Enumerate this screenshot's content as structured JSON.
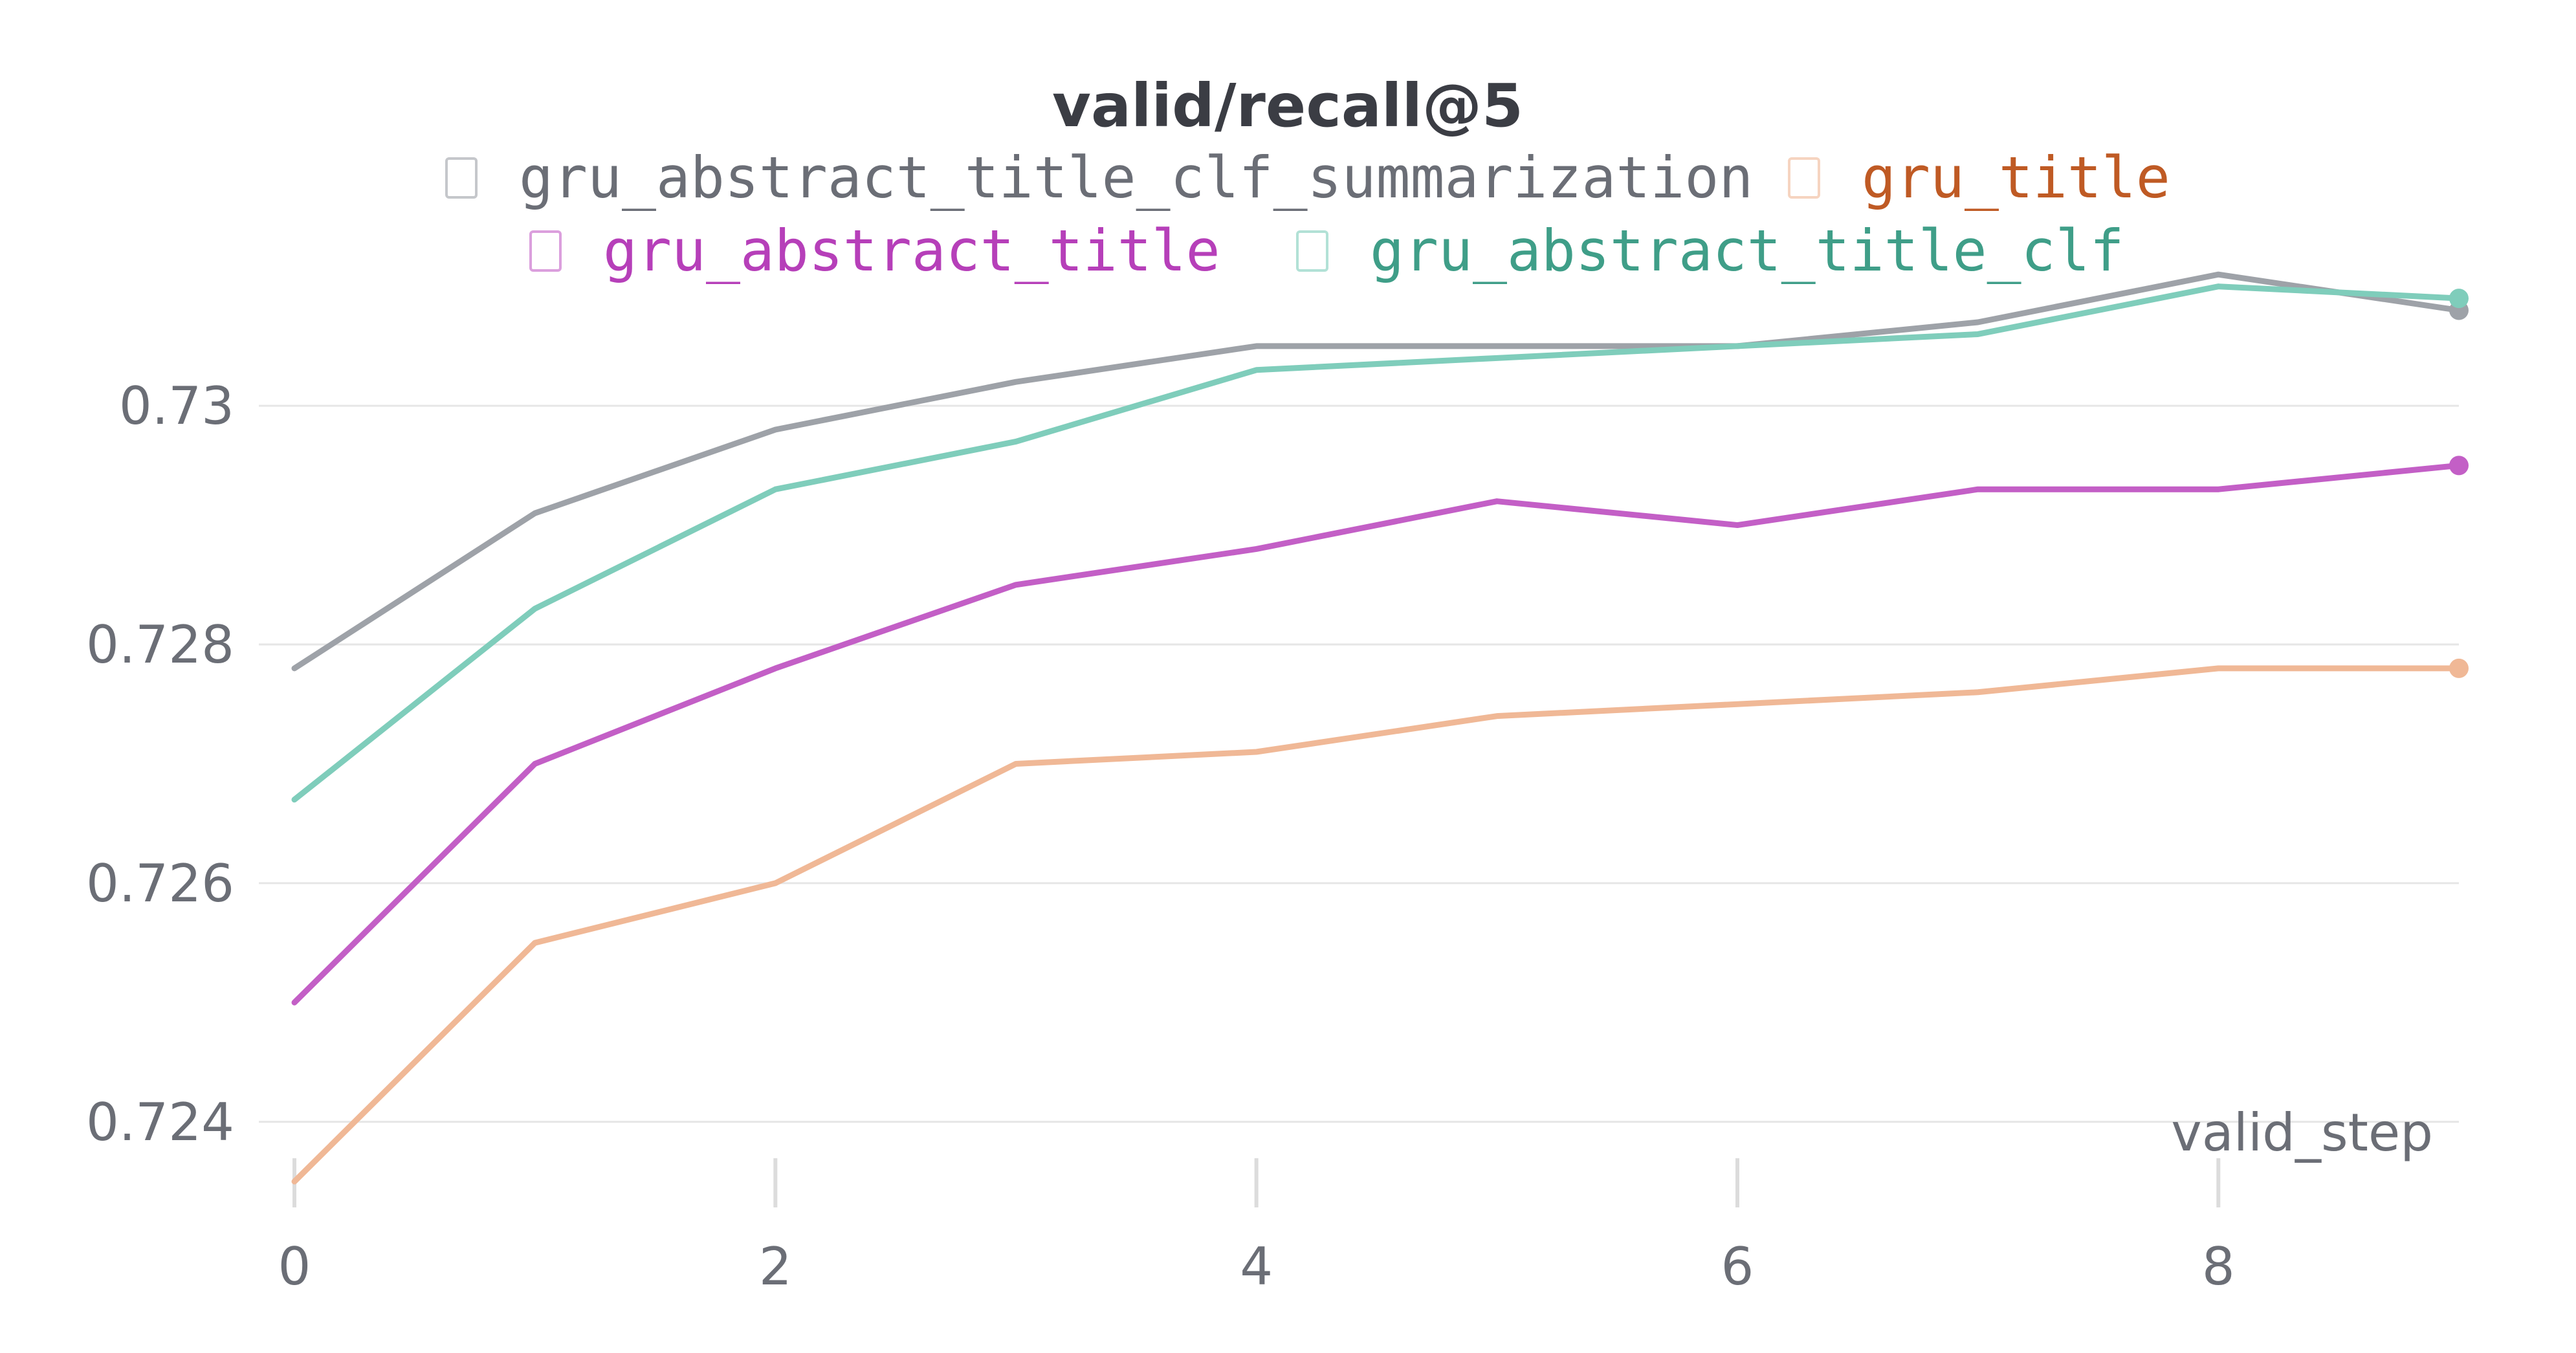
{
  "chart_data": {
    "type": "line",
    "title": "valid/recall@5",
    "xlabel": "valid_step",
    "ylabel": "",
    "x": [
      0,
      1,
      2,
      3,
      4,
      5,
      6,
      7,
      8,
      9
    ],
    "xlim": [
      0,
      9
    ],
    "ylim": [
      0.7235,
      0.7316
    ],
    "x_ticks": [
      "0",
      "2",
      "4",
      "6",
      "8"
    ],
    "y_ticks": [
      "0.724",
      "0.726",
      "0.728",
      "0.73"
    ],
    "grid": "horizontal",
    "legend_position": "top",
    "series": [
      {
        "name": "gru_abstract_title_clf_summarization",
        "color": "#9ea2a8",
        "label_color": "#6b6e76",
        "values": [
          0.7278,
          0.7291,
          0.7298,
          0.7302,
          0.7305,
          0.7305,
          0.7305,
          0.7307,
          0.7311,
          0.7308
        ]
      },
      {
        "name": "gru_title",
        "color": "#f0b896",
        "label_color": "#bf5a24",
        "values": [
          0.7235,
          0.7255,
          0.726,
          0.727,
          0.7271,
          0.7274,
          0.7275,
          0.7276,
          0.7278,
          0.7278
        ]
      },
      {
        "name": "gru_abstract_title",
        "color": "#c35fc6",
        "label_color": "#b63fb9",
        "values": [
          0.725,
          0.727,
          0.7278,
          0.7285,
          0.7288,
          0.7292,
          0.729,
          0.7293,
          0.7293,
          0.7295
        ]
      },
      {
        "name": "gru_abstract_title_clf",
        "color": "#7fcdbb",
        "label_color": "#3f9e88",
        "values": [
          0.7267,
          0.7283,
          0.7293,
          0.7297,
          0.7303,
          0.7304,
          0.7305,
          0.7306,
          0.731,
          0.7309
        ]
      }
    ]
  }
}
